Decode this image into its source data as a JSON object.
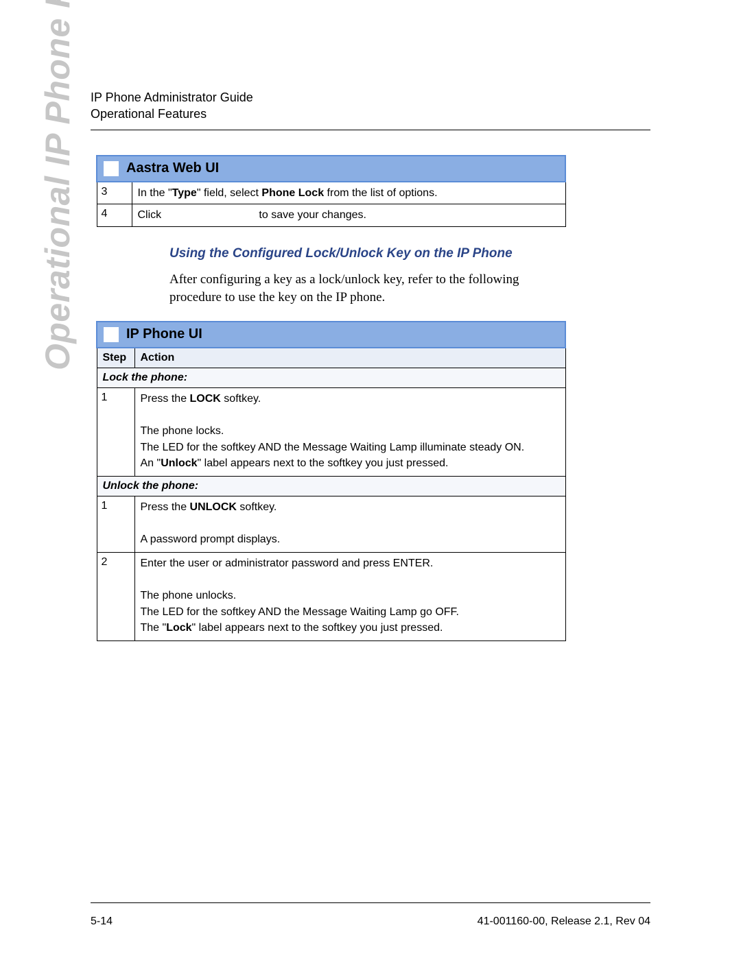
{
  "header": {
    "line1": "IP Phone Administrator Guide",
    "line2": "Operational Features"
  },
  "side_label": "Operational IP Phone Features",
  "colors": {
    "title_bg": "#8aaee3",
    "title_border": "#5b8cd6",
    "hdr_bg": "#e9eef7",
    "section_bg": "#f5f7fb",
    "heading_color": "#2a4487",
    "side_label_color": "#c6c6c6"
  },
  "table1": {
    "title": "Aastra Web UI",
    "rows": [
      {
        "step": "3",
        "action_html": "In the \"<b>Type</b>\" field, select <b>Phone Lock</b> from the list of options."
      },
      {
        "step": "4",
        "action_html": "Click&nbsp;&nbsp;&nbsp;&nbsp;&nbsp;&nbsp;&nbsp;&nbsp;&nbsp;&nbsp;&nbsp;&nbsp;&nbsp;&nbsp;&nbsp;&nbsp;&nbsp;&nbsp;&nbsp;&nbsp;&nbsp;&nbsp;&nbsp;&nbsp;&nbsp;&nbsp;&nbsp;&nbsp;&nbsp;&nbsp;&nbsp;&nbsp;to save your changes."
      }
    ]
  },
  "body": {
    "heading": "Using the Configured Lock/Unlock Key on the IP Phone",
    "para": "After configuring a key as a lock/unlock key, refer to the following procedure to use the key on the IP phone."
  },
  "table2": {
    "title": "IP Phone UI",
    "headers": {
      "step": "Step",
      "action": "Action"
    },
    "sections": [
      {
        "label": "Lock the phone:",
        "rows": [
          {
            "step": "1",
            "action_html": "<p>Press the <b>LOCK</b> softkey.</p><p>&nbsp;</p><p>The phone locks.</p><p>The LED for the softkey AND the Message Waiting Lamp illuminate steady ON.</p><p>An \"<b>Unlock</b>\" label appears next to the softkey you just pressed.</p>"
          }
        ]
      },
      {
        "label": "Unlock the phone:",
        "rows": [
          {
            "step": "1",
            "action_html": "<p>Press the <b>UNLOCK</b> softkey.</p><p>&nbsp;</p><p>A password prompt displays.</p>"
          },
          {
            "step": "2",
            "action_html": "<p>Enter the user or administrator password and press ENTER.</p><p>&nbsp;</p><p>The phone unlocks.</p><p>The LED for the softkey AND the Message Waiting Lamp go OFF.</p><p>The \"<b>Lock</b>\" label appears next to the softkey you just pressed.</p>"
          }
        ]
      }
    ]
  },
  "footer": {
    "left": "5-14",
    "right": "41-001160-00, Release 2.1, Rev 04"
  }
}
